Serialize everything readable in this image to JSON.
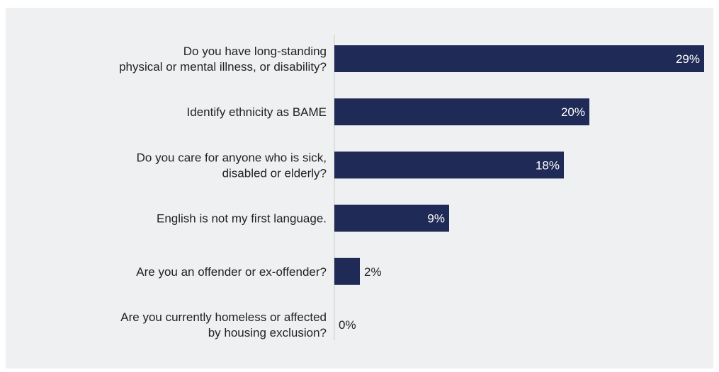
{
  "chart_data": {
    "type": "bar",
    "orientation": "horizontal",
    "categories": [
      [
        "Do you have long-standing",
        "physical or mental illness, or disability?"
      ],
      [
        "Identify ethnicity as BAME"
      ],
      [
        "Do you care for anyone who is sick,",
        "disabled or elderly?"
      ],
      [
        "English is not my first language."
      ],
      [
        "Are you an offender or ex-offender?"
      ],
      [
        "Are you currently homeless or affected",
        "by housing exclusion?"
      ]
    ],
    "values": [
      29,
      20,
      18,
      9,
      2,
      0
    ],
    "value_labels": [
      "29%",
      "20%",
      "18%",
      "9%",
      "2%",
      "0%"
    ],
    "title": "",
    "xlabel": "",
    "ylabel": "",
    "xlim": [
      0,
      29
    ],
    "grid": false,
    "legend": "none",
    "colors": {
      "bar": "#1f2a56",
      "panel_background": "#eef0f1",
      "axis_line": "#cccccc",
      "label_text": "#222222",
      "value_text_inside": "#ffffff",
      "value_text_outside": "#222222"
    }
  }
}
